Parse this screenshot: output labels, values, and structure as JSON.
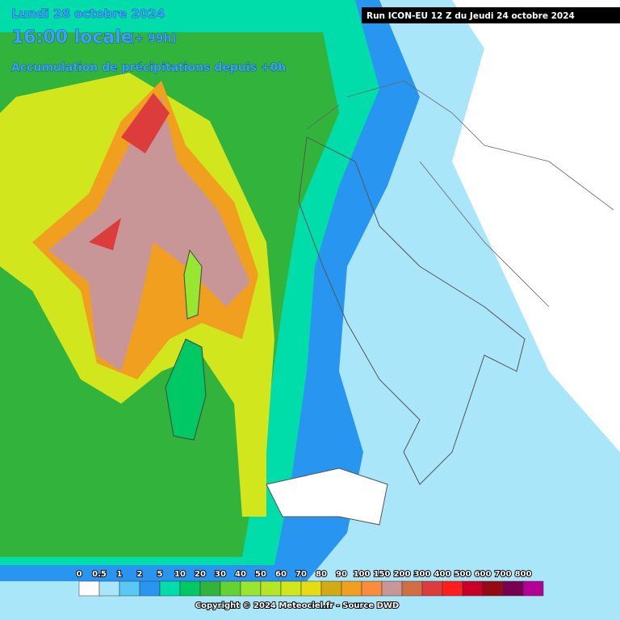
{
  "header": {
    "date": "Lundi 28 octobre 2024",
    "time": "16:00 locale",
    "offset": "(+ 99h)",
    "subtitle": "Accumulation de précipitations depuis +0h",
    "run": "Run ICON-EU 12 Z du Jeudi 24 octobre 2024"
  },
  "legend": {
    "labels": [
      "0",
      "0.5",
      "1",
      "2",
      "5",
      "10",
      "20",
      "30",
      "40",
      "50",
      "60",
      "70",
      "80",
      "90",
      "100",
      "150",
      "200",
      "300",
      "400",
      "500",
      "600",
      "700",
      "800"
    ],
    "colors": [
      "#ffffff",
      "#aae6fa",
      "#5ac8f5",
      "#2896f0",
      "#00dcaa",
      "#00c864",
      "#32b43c",
      "#64d232",
      "#96e632",
      "#b4e628",
      "#d2e61e",
      "#e6dc14",
      "#d2aa14",
      "#f0a01e",
      "#fa8c3c",
      "#c89696",
      "#d26e46",
      "#dc3c3c",
      "#ff1e1e",
      "#c80028",
      "#960a14",
      "#780050",
      "#b40096"
    ]
  },
  "footer": {
    "copyright": "Copyright © 2024 Meteociel.fr - Source DWD"
  }
}
